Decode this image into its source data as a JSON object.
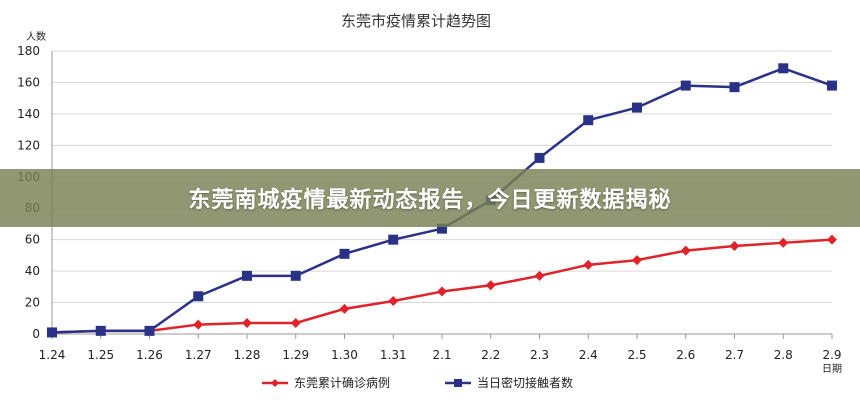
{
  "chart_data": {
    "type": "line",
    "title": "东莞市疫情累计趋势图",
    "ylabel": "人数",
    "xlabel": "日期",
    "ylim": [
      0,
      180
    ],
    "yticks": [
      0,
      20,
      40,
      60,
      80,
      100,
      120,
      140,
      160,
      180
    ],
    "grid": true,
    "legend_position": "bottom",
    "categories": [
      "1.24",
      "1.25",
      "1.26",
      "1.27",
      "1.28",
      "1.29",
      "1.30",
      "1.31",
      "2.1",
      "2.2",
      "2.3",
      "2.4",
      "2.5",
      "2.6",
      "2.7",
      "2.8",
      "2.9"
    ],
    "series": [
      {
        "name": "东莞累计确诊病例",
        "color": "#e0232a",
        "marker": "diamond",
        "values": [
          1,
          2,
          2,
          6,
          7,
          7,
          16,
          21,
          27,
          31,
          37,
          44,
          47,
          53,
          56,
          58,
          60
        ]
      },
      {
        "name": "当日密切接触者数",
        "color": "#2a3288",
        "marker": "square",
        "values": [
          1,
          2,
          2,
          24,
          37,
          37,
          51,
          60,
          67,
          85,
          112,
          136,
          144,
          158,
          157,
          169,
          158
        ]
      }
    ]
  },
  "banner": {
    "text": "东莞南城疫情最新动态报告，今日更新数据揭秘"
  },
  "colors": {
    "banner_bg": "#7a8054",
    "grid": "#d9d9d9"
  }
}
